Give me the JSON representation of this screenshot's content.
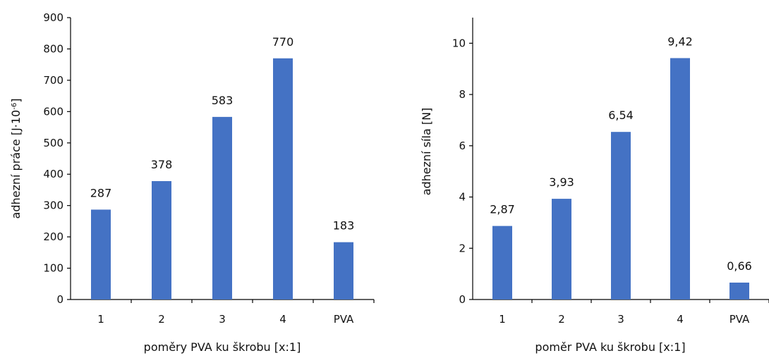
{
  "chart_data": [
    {
      "type": "bar",
      "categories": [
        "1",
        "2",
        "3",
        "4",
        "PVA"
      ],
      "values": [
        287,
        378,
        583,
        770,
        183
      ],
      "data_labels": [
        "287",
        "378",
        "583",
        "770",
        "183"
      ],
      "xlabel": "poměry PVA ku škrobu [x:1]",
      "ylabel_main": "adhezní práce [J·10",
      "ylabel_sup": "-6",
      "ylabel_end": "]",
      "ylim": [
        0,
        900
      ],
      "yticks": [
        0,
        100,
        200,
        300,
        400,
        500,
        600,
        700,
        800,
        900
      ],
      "ytick_labels": [
        "0",
        "100",
        "200",
        "300",
        "400",
        "500",
        "600",
        "700",
        "800",
        "900"
      ],
      "bar_color": "#4472c4",
      "grid": false,
      "legend": "none"
    },
    {
      "type": "bar",
      "categories": [
        "1",
        "2",
        "3",
        "4",
        "PVA"
      ],
      "values": [
        2.87,
        3.93,
        6.54,
        9.42,
        0.66
      ],
      "data_labels": [
        "2,87",
        "3,93",
        "6,54",
        "9,42",
        "0,66"
      ],
      "xlabel": "poměr PVA ku škrobu [x:1]",
      "ylabel_main": "adhezní síla [N]",
      "ylabel_sup": "",
      "ylabel_end": "",
      "ylim": [
        0,
        11
      ],
      "yticks": [
        0,
        2,
        4,
        6,
        8,
        10
      ],
      "ytick_labels": [
        "0",
        "2",
        "4",
        "6",
        "8",
        "10"
      ],
      "bar_color": "#4472c4",
      "grid": false,
      "legend": "none"
    }
  ]
}
